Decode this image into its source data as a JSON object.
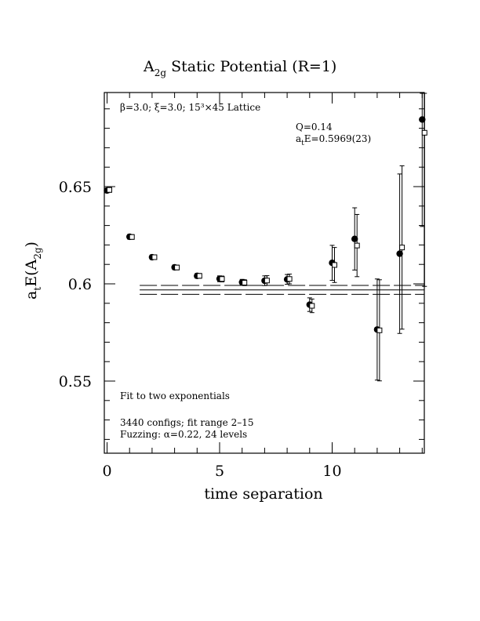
{
  "chart_data": {
    "type": "scatter",
    "title": {
      "main": "A",
      "sub": "2g",
      "rest": " Static Potential (R=1)"
    },
    "xlabel": "time separation",
    "ylabel": {
      "pre": "a",
      "pre_sub": "t",
      "mid": "E(A",
      "sub": "2g",
      "post": ")"
    },
    "xlim": [
      0,
      14
    ],
    "ylim": [
      0.514,
      0.697
    ],
    "xticks": [
      0,
      5,
      10
    ],
    "xtick_labels": [
      "0",
      "5",
      "10"
    ],
    "yticks": [
      0.55,
      0.6,
      0.65
    ],
    "ytick_labels": [
      "0.55",
      "0.6",
      "0.65"
    ],
    "annotations": {
      "lattice": "β=3.0; ξ=3.0; 15³×45 Lattice",
      "q": "Q=0.14",
      "energy": {
        "pre": "a",
        "sub": "t",
        "post": "E=0.5969(23)"
      },
      "fit_desc": "Fit to two exponentials",
      "configs": "3440 configs; fit range 2–15",
      "fuzzing": "Fuzzing: α=0.22, 24 levels"
    },
    "fit": {
      "value": 0.5969,
      "error": 0.0023,
      "x_range": [
        1.45,
        14
      ]
    },
    "series": [
      {
        "marker": "filled-circle",
        "points": [
          {
            "x": 0,
            "y": 0.648,
            "err": 0.0012
          },
          {
            "x": 1,
            "y": 0.6242,
            "err": 0.0012
          },
          {
            "x": 2,
            "y": 0.6137,
            "err": 0.0012
          },
          {
            "x": 3,
            "y": 0.6085,
            "err": 0.0012
          },
          {
            "x": 4,
            "y": 0.6041,
            "err": 0.0012
          },
          {
            "x": 5,
            "y": 0.6026,
            "err": 0.0015
          },
          {
            "x": 6,
            "y": 0.6008,
            "err": 0.0015
          },
          {
            "x": 7,
            "y": 0.6016,
            "err": 0.0025
          },
          {
            "x": 8,
            "y": 0.6023,
            "err": 0.0025
          },
          {
            "x": 9,
            "y": 0.5893,
            "err": 0.0035
          },
          {
            "x": 10,
            "y": 0.6108,
            "err": 0.009
          },
          {
            "x": 11,
            "y": 0.6231,
            "err": 0.016
          },
          {
            "x": 12,
            "y": 0.5765,
            "err": 0.026
          },
          {
            "x": 13,
            "y": 0.6155,
            "err": 0.041
          },
          {
            "x": 14,
            "y": 0.6845,
            "err": 0.055
          }
        ]
      },
      {
        "marker": "open-square",
        "points": [
          {
            "x": 0,
            "y": 0.6483,
            "err": 0.0012
          },
          {
            "x": 1,
            "y": 0.6241,
            "err": 0.0012
          },
          {
            "x": 2,
            "y": 0.6137,
            "err": 0.0012
          },
          {
            "x": 3,
            "y": 0.6084,
            "err": 0.0012
          },
          {
            "x": 4,
            "y": 0.6041,
            "err": 0.0012
          },
          {
            "x": 5,
            "y": 0.6025,
            "err": 0.0015
          },
          {
            "x": 6,
            "y": 0.6006,
            "err": 0.0015
          },
          {
            "x": 7,
            "y": 0.6017,
            "err": 0.0025
          },
          {
            "x": 8,
            "y": 0.6025,
            "err": 0.0025
          },
          {
            "x": 9,
            "y": 0.5887,
            "err": 0.0035
          },
          {
            "x": 10,
            "y": 0.6097,
            "err": 0.009
          },
          {
            "x": 11,
            "y": 0.6197,
            "err": 0.016
          },
          {
            "x": 12,
            "y": 0.5761,
            "err": 0.026
          },
          {
            "x": 13,
            "y": 0.6187,
            "err": 0.042
          },
          {
            "x": 14,
            "y": 0.6777,
            "err": 0.079
          }
        ]
      }
    ]
  }
}
